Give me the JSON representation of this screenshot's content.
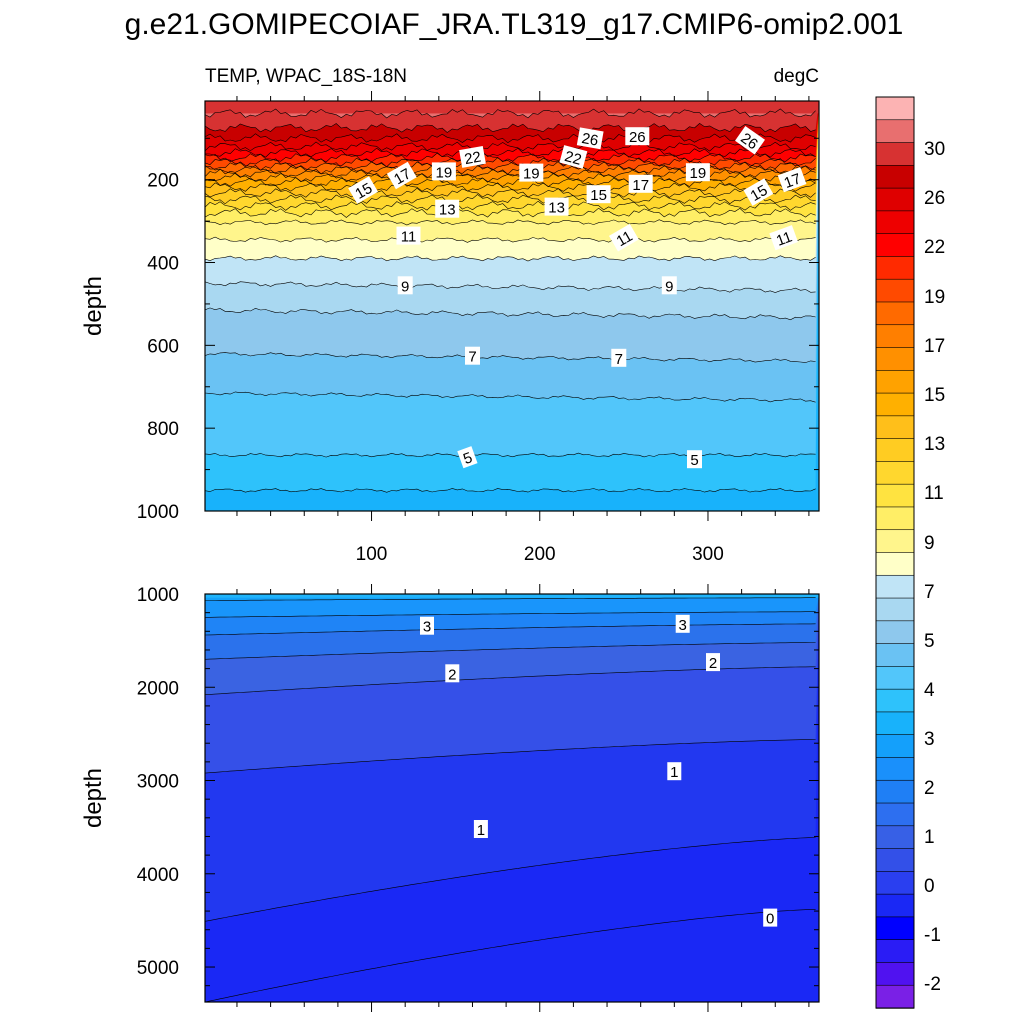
{
  "title": "g.e21.GOMIPECOIAF_JRA.TL319_g17.CMIP6-omip2.001",
  "variable_label": "TEMP, WPAC_18S-18N",
  "units_label": "degC",
  "chart_data": [
    {
      "type": "contour",
      "panel": "upper",
      "xlabel": "",
      "ylabel": "depth",
      "xlim": [
        1,
        366
      ],
      "ylim": [
        1000,
        10
      ],
      "y_inverted": true,
      "x_ticks": [
        100,
        200,
        300
      ],
      "y_ticks": [
        200,
        400,
        600,
        800,
        1000
      ],
      "isotherm_depths": [
        {
          "temp": 29,
          "depth": 40
        },
        {
          "temp": 28,
          "depth": 75
        },
        {
          "temp": 27,
          "depth": 100
        },
        {
          "temp": 26,
          "depth": 120
        },
        {
          "temp": 25,
          "depth": 135
        },
        {
          "temp": 24,
          "depth": 147
        },
        {
          "temp": 23,
          "depth": 158
        },
        {
          "temp": 22,
          "depth": 167
        },
        {
          "temp": 21,
          "depth": 176
        },
        {
          "temp": 20,
          "depth": 185
        },
        {
          "temp": 19,
          "depth": 195
        },
        {
          "temp": 18,
          "depth": 206
        },
        {
          "temp": 17,
          "depth": 218
        },
        {
          "temp": 16,
          "depth": 232
        },
        {
          "temp": 15,
          "depth": 247
        },
        {
          "temp": 14,
          "depth": 263
        },
        {
          "temp": 13,
          "depth": 280
        },
        {
          "temp": 12,
          "depth": 303
        },
        {
          "temp": 11,
          "depth": 345
        },
        {
          "temp": 10,
          "depth": 390
        },
        {
          "temp": 9,
          "depth": 460
        },
        {
          "temp": 8,
          "depth": 525
        },
        {
          "temp": 7,
          "depth": 630
        },
        {
          "temp": 6,
          "depth": 725
        },
        {
          "temp": 5,
          "depth": 865
        },
        {
          "temp": 4,
          "depth": 950
        }
      ],
      "contour_labels": [
        {
          "text": "26",
          "x": 230,
          "depth": 100,
          "angle": 10
        },
        {
          "text": "26",
          "x": 258,
          "depth": 95,
          "angle": 0
        },
        {
          "text": "26",
          "x": 325,
          "depth": 105,
          "angle": 35
        },
        {
          "text": "22",
          "x": 160,
          "depth": 145,
          "angle": -10
        },
        {
          "text": "22",
          "x": 220,
          "depth": 145,
          "angle": 15
        },
        {
          "text": "19",
          "x": 143,
          "depth": 180,
          "angle": 0
        },
        {
          "text": "19",
          "x": 195,
          "depth": 183,
          "angle": 0
        },
        {
          "text": "19",
          "x": 294,
          "depth": 182,
          "angle": 0
        },
        {
          "text": "17",
          "x": 118,
          "depth": 190,
          "angle": -30
        },
        {
          "text": "17",
          "x": 260,
          "depth": 210,
          "angle": 0
        },
        {
          "text": "17",
          "x": 350,
          "depth": 200,
          "angle": -20
        },
        {
          "text": "15",
          "x": 95,
          "depth": 225,
          "angle": -30
        },
        {
          "text": "15",
          "x": 235,
          "depth": 235,
          "angle": 0
        },
        {
          "text": "15",
          "x": 330,
          "depth": 230,
          "angle": -30
        },
        {
          "text": "13",
          "x": 145,
          "depth": 270,
          "angle": 0
        },
        {
          "text": "13",
          "x": 210,
          "depth": 265,
          "angle": 0
        },
        {
          "text": "11",
          "x": 122,
          "depth": 335,
          "angle": 0
        },
        {
          "text": "11",
          "x": 250,
          "depth": 340,
          "angle": -30
        },
        {
          "text": "11",
          "x": 345,
          "depth": 340,
          "angle": -20
        },
        {
          "text": "9",
          "x": 120,
          "depth": 455,
          "angle": 0
        },
        {
          "text": "9",
          "x": 277,
          "depth": 455,
          "angle": 0
        },
        {
          "text": "7",
          "x": 160,
          "depth": 625,
          "angle": 0
        },
        {
          "text": "7",
          "x": 247,
          "depth": 630,
          "angle": 0
        },
        {
          "text": "5",
          "x": 157,
          "depth": 870,
          "angle": -20
        },
        {
          "text": "5",
          "x": 292,
          "depth": 875,
          "angle": 0
        }
      ]
    },
    {
      "type": "contour",
      "panel": "lower",
      "xlabel": "",
      "ylabel": "depth",
      "xlim": [
        1,
        366
      ],
      "ylim": [
        5375,
        1000
      ],
      "y_inverted": true,
      "x_ticks": [
        100,
        200,
        300
      ],
      "y_ticks": [
        1000,
        2000,
        3000,
        4000,
        5000
      ],
      "isotherm_lines": [
        {
          "temp": 4.0,
          "depth_start": 1070,
          "depth_end": 1040
        },
        {
          "temp": 3.5,
          "depth_start": 1250,
          "depth_end": 1190
        },
        {
          "temp": 3.0,
          "depth_start": 1440,
          "depth_end": 1320
        },
        {
          "temp": 2.5,
          "depth_start": 1700,
          "depth_end": 1520
        },
        {
          "temp": 2.0,
          "depth_start": 2080,
          "depth_end": 1780
        },
        {
          "temp": 1.5,
          "depth_start": 2920,
          "depth_end": 2560
        },
        {
          "temp": 1.0,
          "depth_start": 4510,
          "depth_end": 3610
        },
        {
          "temp": 0.5,
          "depth_start": 5375,
          "depth_end": 4380
        }
      ],
      "contour_labels": [
        {
          "text": "3",
          "x": 133,
          "depth": 1340
        },
        {
          "text": "3",
          "x": 285,
          "depth": 1320
        },
        {
          "text": "2",
          "x": 148,
          "depth": 1850
        },
        {
          "text": "2",
          "x": 303,
          "depth": 1730
        },
        {
          "text": "1",
          "x": 165,
          "depth": 3520
        },
        {
          "text": "1",
          "x": 280,
          "depth": 2900
        },
        {
          "text": "0",
          "x": 337,
          "depth": 4470
        }
      ]
    }
  ],
  "colorbar": {
    "labels": [
      "30",
      "26",
      "22",
      "19",
      "17",
      "15",
      "13",
      "11",
      "9",
      "7",
      "5",
      "4",
      "3",
      "2",
      "1",
      "0",
      "-1",
      "-2"
    ],
    "colors": [
      "#fcb3b3",
      "#e86f6f",
      "#d73232",
      "#c80000",
      "#df0000",
      "#ee0000",
      "#ff0000",
      "#ff2a00",
      "#ff4a00",
      "#ff6a00",
      "#ff7f00",
      "#ff9000",
      "#ffa200",
      "#ffb000",
      "#ffbf1a",
      "#ffcc22",
      "#ffd72e",
      "#ffe340",
      "#ffee66",
      "#fff58c",
      "#ffffc8",
      "#c0e4f6",
      "#a9d8f1",
      "#8ec8ed",
      "#6ac2f3",
      "#52c6fa",
      "#2ec2fb",
      "#18b2fb",
      "#14a0fb",
      "#1a90fb",
      "#1f7ff5",
      "#2d6ff0",
      "#3760e6",
      "#3350e8",
      "#2a3ff0",
      "#1a28f5",
      "#0000ff",
      "#2a1cf5",
      "#5012f0",
      "#7a20e6"
    ]
  }
}
